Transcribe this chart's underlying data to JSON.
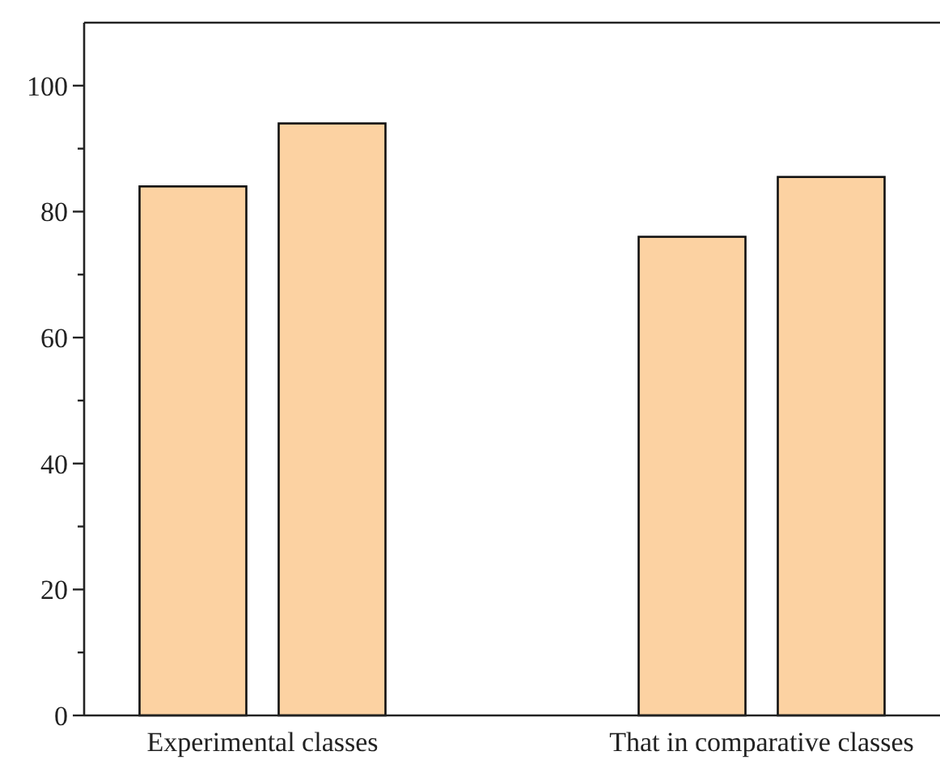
{
  "chart_data": {
    "type": "bar",
    "categories": [
      "Experimental classes",
      "That in comparative classes"
    ],
    "series": [
      {
        "color": "#fcd2a2",
        "values": [
          84,
          76
        ]
      },
      {
        "color": "#fcd2a2",
        "values": [
          94,
          85.5
        ]
      }
    ],
    "ylim": [
      0,
      110
    ],
    "yticks": [
      0,
      {
        "value": 10,
        "label": null
      },
      20,
      {
        "value": 30,
        "label": null
      },
      40,
      {
        "value": 50,
        "label": null
      },
      60,
      {
        "value": 70,
        "label": null
      },
      80,
      {
        "value": 90,
        "label": null
      },
      100
    ],
    "grid": false
  }
}
